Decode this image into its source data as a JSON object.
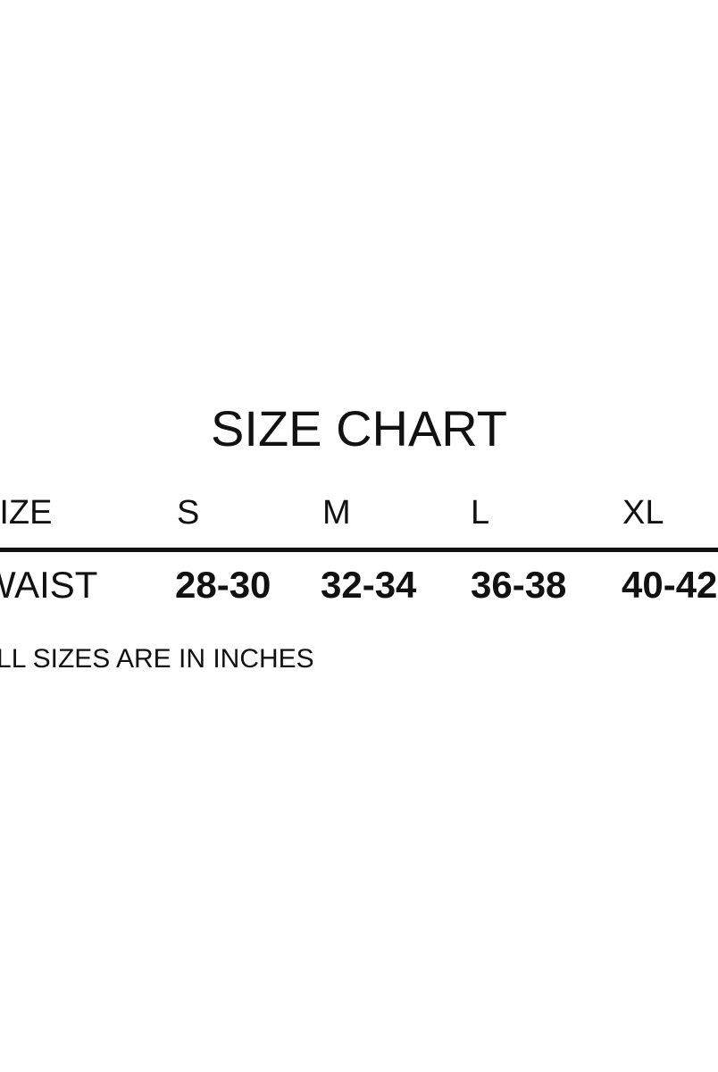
{
  "title": "SIZE CHART",
  "table": {
    "header": [
      "SIZE",
      "S",
      "M",
      "L",
      "XL"
    ],
    "rows": [
      [
        "WAIST",
        "28-30",
        "32-34",
        "36-38",
        "40-42"
      ]
    ]
  },
  "note": "ALL SIZES ARE IN INCHES"
}
